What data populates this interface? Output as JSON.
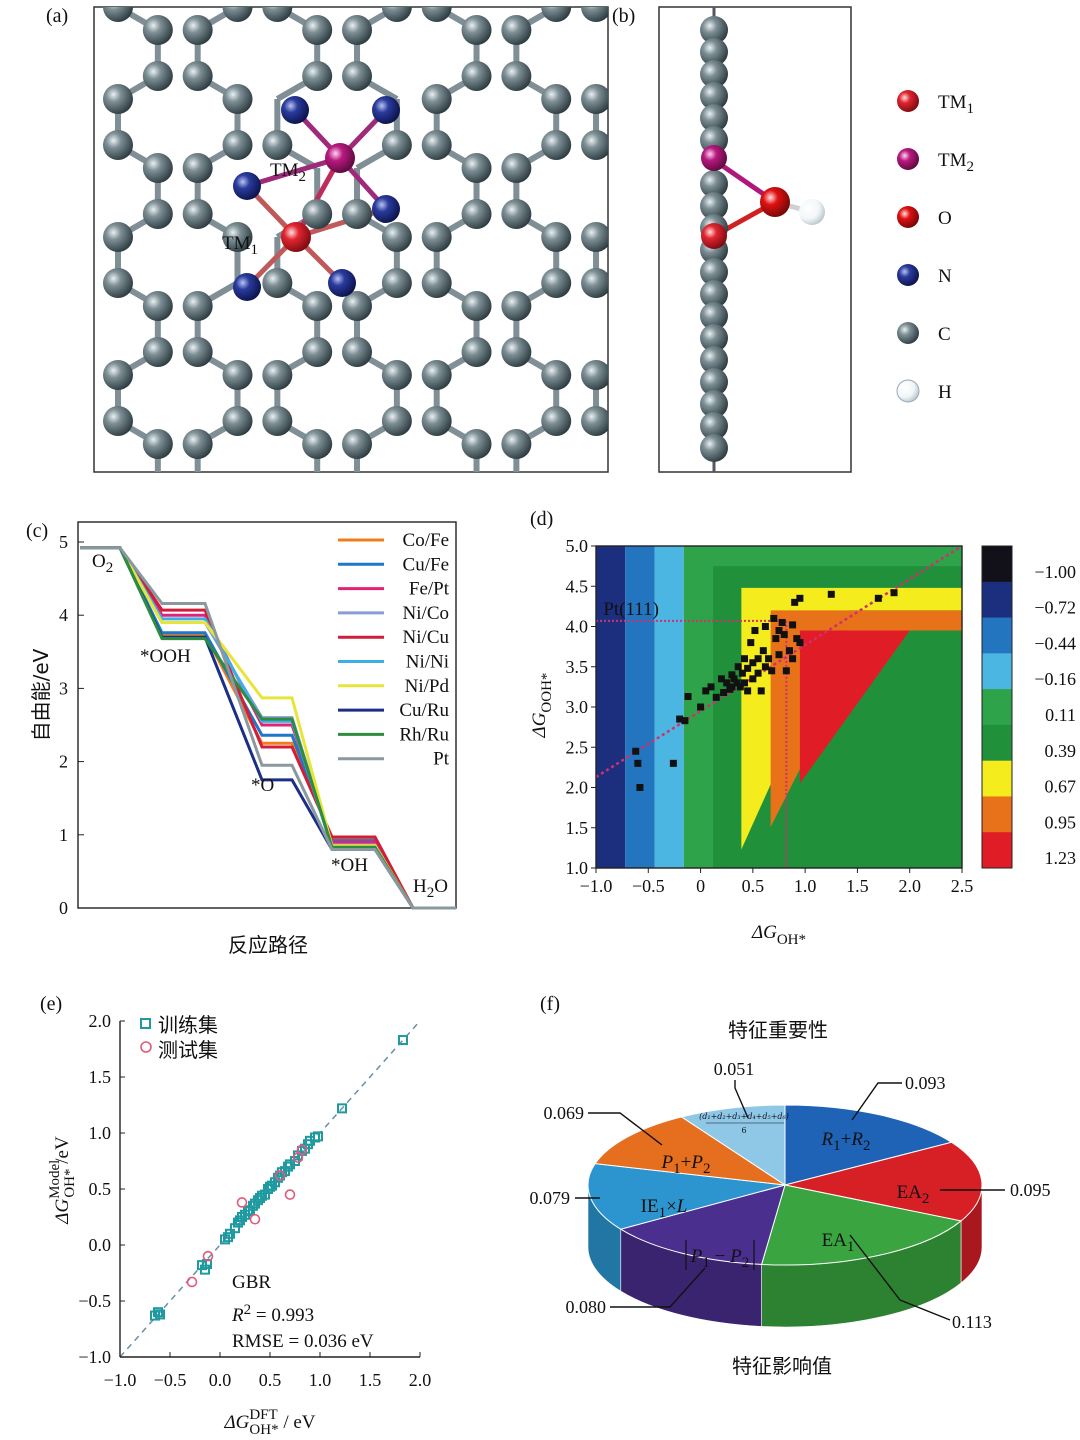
{
  "panels": {
    "a": "(a)",
    "b": "(b)",
    "c": "(c)",
    "d": "(d)",
    "e": "(e)",
    "f": "(f)"
  },
  "structure": {
    "labels": {
      "tm1": "TM",
      "tm1_sub": "1",
      "tm2": "TM",
      "tm2_sub": "2"
    },
    "legend": [
      {
        "name": "TM",
        "sub": "1",
        "color": "#d81e28"
      },
      {
        "name": "TM",
        "sub": "2",
        "color": "#b0177a"
      },
      {
        "name": "O",
        "sub": "",
        "color": "#e01010"
      },
      {
        "name": "N",
        "sub": "",
        "color": "#1a2a8a"
      },
      {
        "name": "C",
        "sub": "",
        "color": "#1f2e33"
      },
      {
        "name": "H",
        "sub": "",
        "color": "#f2f6f8"
      }
    ]
  },
  "chart_data": [
    {
      "id": "c",
      "type": "line",
      "title": "",
      "ylabel": "自由能/eV",
      "xlabel": "反应路径",
      "ylim": [
        0,
        5
      ],
      "yticks": [
        "0",
        "1",
        "2",
        "3",
        "4",
        "5"
      ],
      "steps": [
        "O2",
        "*OOH",
        "*O",
        "*OH",
        "H2O"
      ],
      "step_labels": {
        "o2": "O",
        "o2_sub": "2",
        "ooh": "*OOH",
        "o": "*O",
        "oh": "*OH",
        "h2o": "H",
        "h2o_sub": "2",
        "h2o_end": "O"
      },
      "series": [
        {
          "name": "Co/Fe",
          "color": "#f07d1a",
          "values": [
            4.92,
            3.74,
            2.25,
            0.95,
            0
          ]
        },
        {
          "name": "Cu/Fe",
          "color": "#1f77c9",
          "values": [
            4.92,
            3.76,
            2.36,
            0.92,
            0
          ]
        },
        {
          "name": "Fe/Pt",
          "color": "#e0237a",
          "values": [
            4.92,
            4.0,
            2.5,
            0.9,
            0
          ]
        },
        {
          "name": "Ni/Co",
          "color": "#8a9bd6",
          "values": [
            4.92,
            3.9,
            2.6,
            0.86,
            0
          ]
        },
        {
          "name": "Ni/Cu",
          "color": "#d21d3a",
          "values": [
            4.92,
            4.07,
            2.2,
            0.97,
            0
          ]
        },
        {
          "name": "Ni/Ni",
          "color": "#3cb0e6",
          "values": [
            4.92,
            3.95,
            2.55,
            0.82,
            0
          ]
        },
        {
          "name": "Ni/Pd",
          "color": "#e8e43a",
          "values": [
            4.92,
            3.9,
            2.87,
            0.85,
            0
          ]
        },
        {
          "name": "Cu/Ru",
          "color": "#1c2f86",
          "values": [
            4.92,
            3.7,
            1.75,
            0.8,
            0
          ]
        },
        {
          "name": "Rh/Ru",
          "color": "#2d8c3e",
          "values": [
            4.92,
            3.68,
            2.58,
            0.83,
            0
          ]
        },
        {
          "name": "Pt",
          "color": "#8a98a0",
          "values": [
            4.92,
            4.16,
            1.95,
            0.8,
            0
          ]
        }
      ]
    },
    {
      "id": "d",
      "type": "heatmap",
      "xlabel": "ΔG",
      "xlabel_sub": "OH*",
      "ylabel": "ΔG",
      "ylabel_sub": "OOH*",
      "xlim": [
        -1.0,
        2.5
      ],
      "ylim": [
        1.0,
        5.0
      ],
      "xticks": [
        "-1.0",
        "-0.5",
        "0",
        "0.5",
        "1.0",
        "1.5",
        "2.0",
        "2.5"
      ],
      "yticks": [
        "1.0",
        "1.5",
        "2.0",
        "2.5",
        "3.0",
        "3.5",
        "4.0",
        "4.5",
        "5.0"
      ],
      "colorbar": [
        {
          "label": "-1.00",
          "color": "#121018"
        },
        {
          "label": "-0.72",
          "color": "#1c2f7e"
        },
        {
          "label": "-0.44",
          "color": "#2375c0"
        },
        {
          "label": "-0.16",
          "color": "#4cb6e2"
        },
        {
          "label": "0.11",
          "color": "#2fa34a"
        },
        {
          "label": "0.39",
          "color": "#21903a"
        },
        {
          "label": "0.67",
          "color": "#f4ec1c"
        },
        {
          "label": "0.95",
          "color": "#e8721a"
        },
        {
          "label": "1.23",
          "color": "#e01c26"
        }
      ],
      "annotation": "Pt(111)",
      "pt_point": [
        0.82,
        4.07
      ],
      "scaling_line": {
        "slope": 0.82,
        "intercept": 2.95
      },
      "points": [
        [
          -0.62,
          2.45
        ],
        [
          -0.6,
          2.3
        ],
        [
          -0.58,
          2.0
        ],
        [
          -0.26,
          2.3
        ],
        [
          -0.2,
          2.85
        ],
        [
          -0.15,
          2.83
        ],
        [
          -0.12,
          3.13
        ],
        [
          0.0,
          3.0
        ],
        [
          0.05,
          3.2
        ],
        [
          0.1,
          3.25
        ],
        [
          0.15,
          3.12
        ],
        [
          0.2,
          3.35
        ],
        [
          0.22,
          3.18
        ],
        [
          0.25,
          3.3
        ],
        [
          0.28,
          3.22
        ],
        [
          0.3,
          3.4
        ],
        [
          0.3,
          3.25
        ],
        [
          0.32,
          3.35
        ],
        [
          0.35,
          3.3
        ],
        [
          0.36,
          3.5
        ],
        [
          0.38,
          3.25
        ],
        [
          0.4,
          3.42
        ],
        [
          0.42,
          3.6
        ],
        [
          0.42,
          3.3
        ],
        [
          0.45,
          3.48
        ],
        [
          0.45,
          3.2
        ],
        [
          0.48,
          3.8
        ],
        [
          0.5,
          3.55
        ],
        [
          0.5,
          3.35
        ],
        [
          0.52,
          3.95
        ],
        [
          0.55,
          3.42
        ],
        [
          0.55,
          3.6
        ],
        [
          0.58,
          3.2
        ],
        [
          0.6,
          3.7
        ],
        [
          0.62,
          3.5
        ],
        [
          0.62,
          4.0
        ],
        [
          0.65,
          3.6
        ],
        [
          0.68,
          3.45
        ],
        [
          0.7,
          4.1
        ],
        [
          0.72,
          3.85
        ],
        [
          0.75,
          3.95
        ],
        [
          0.75,
          3.65
        ],
        [
          0.78,
          4.05
        ],
        [
          0.8,
          3.9
        ],
        [
          0.82,
          3.45
        ],
        [
          0.85,
          3.7
        ],
        [
          0.88,
          4.02
        ],
        [
          0.88,
          3.6
        ],
        [
          0.9,
          4.3
        ],
        [
          0.92,
          3.85
        ],
        [
          0.95,
          4.35
        ],
        [
          0.95,
          3.8
        ],
        [
          1.25,
          4.4
        ],
        [
          1.7,
          4.35
        ],
        [
          1.85,
          4.42
        ]
      ]
    },
    {
      "id": "e",
      "type": "scatter",
      "xlabel": "ΔG",
      "xlabel_sup": "DFT",
      "xlabel_sub": "OH*",
      "xlabel_unit": " / eV",
      "ylabel": "ΔG",
      "ylabel_sup": "Model",
      "ylabel_sub": "OH*",
      "ylabel_unit": " /eV",
      "xlim": [
        -1.0,
        2.0
      ],
      "ylim": [
        -1.0,
        2.0
      ],
      "xticks": [
        "-1.0",
        "-0.5",
        "0.0",
        "0.5",
        "1.0",
        "1.5",
        "2.0"
      ],
      "yticks": [
        "-1.0",
        "-0.5",
        "0.0",
        "0.5",
        "1.0",
        "1.5",
        "2.0"
      ],
      "legend": [
        "训练集",
        "测试集"
      ],
      "model": "GBR",
      "r2_label": "R",
      "r2_sup": "2",
      "r2_value": " = 0.993",
      "rmse": "RMSE = 0.036 eV",
      "series": [
        {
          "name": "训练集",
          "color": "#1f9aa0",
          "points": [
            [
              -0.65,
              -0.63
            ],
            [
              -0.62,
              -0.6
            ],
            [
              -0.6,
              -0.62
            ],
            [
              -0.18,
              -0.18
            ],
            [
              -0.15,
              -0.22
            ],
            [
              -0.13,
              -0.17
            ],
            [
              0.05,
              0.05
            ],
            [
              0.08,
              0.07
            ],
            [
              0.1,
              0.1
            ],
            [
              0.15,
              0.15
            ],
            [
              0.18,
              0.2
            ],
            [
              0.2,
              0.22
            ],
            [
              0.22,
              0.25
            ],
            [
              0.25,
              0.27
            ],
            [
              0.28,
              0.3
            ],
            [
              0.3,
              0.31
            ],
            [
              0.33,
              0.35
            ],
            [
              0.35,
              0.37
            ],
            [
              0.38,
              0.4
            ],
            [
              0.4,
              0.42
            ],
            [
              0.42,
              0.44
            ],
            [
              0.45,
              0.45
            ],
            [
              0.48,
              0.5
            ],
            [
              0.5,
              0.52
            ],
            [
              0.52,
              0.53
            ],
            [
              0.55,
              0.56
            ],
            [
              0.58,
              0.6
            ],
            [
              0.6,
              0.62
            ],
            [
              0.62,
              0.65
            ],
            [
              0.65,
              0.66
            ],
            [
              0.68,
              0.7
            ],
            [
              0.7,
              0.72
            ],
            [
              0.75,
              0.75
            ],
            [
              0.78,
              0.8
            ],
            [
              0.82,
              0.84
            ],
            [
              0.85,
              0.86
            ],
            [
              0.88,
              0.9
            ],
            [
              0.9,
              0.93
            ],
            [
              0.95,
              0.96
            ],
            [
              0.98,
              0.97
            ],
            [
              1.22,
              1.22
            ],
            [
              1.83,
              1.83
            ]
          ]
        },
        {
          "name": "测试集",
          "color": "#e25b7c",
          "points": [
            [
              -0.28,
              -0.33
            ],
            [
              -0.12,
              -0.1
            ],
            [
              0.22,
              0.38
            ],
            [
              0.35,
              0.23
            ],
            [
              0.6,
              0.62
            ],
            [
              0.7,
              0.45
            ],
            [
              0.78,
              0.78
            ],
            [
              0.82,
              0.85
            ]
          ]
        }
      ]
    },
    {
      "id": "f",
      "type": "pie",
      "title": "特征重要性",
      "footer": "特征影响值",
      "slices": [
        {
          "name": "R1+R2",
          "value": 0.093,
          "label": "0.093",
          "color": "#1e63b5",
          "side": "#17518f"
        },
        {
          "name": "EA2",
          "value": 0.095,
          "label": "0.095",
          "color": "#d71f26",
          "side": "#a8181e"
        },
        {
          "name": "EA1",
          "value": 0.113,
          "label": "0.113",
          "color": "#3aa540",
          "side": "#2d8232"
        },
        {
          "name": "|P1-P2|",
          "value": 0.08,
          "label": "0.080",
          "color": "#4b2f8f",
          "side": "#3a236f"
        },
        {
          "name": "IE1×L",
          "value": 0.079,
          "label": "0.079",
          "color": "#2c95cf",
          "side": "#2276a4"
        },
        {
          "name": "P1+P2",
          "value": 0.069,
          "label": "0.069",
          "color": "#e56f1f",
          "side": "#b35617"
        },
        {
          "name": "(d1+d2+d3+d4+d5+d6)/6",
          "value": 0.051,
          "label": "0.051",
          "color": "#8fc7e6",
          "side": "#6fa3c0"
        }
      ],
      "slice_text": {
        "r": "R",
        "r_sub1": "1",
        "plus": "+",
        "r2": "R",
        "r_sub2": "2",
        "ea": "EA",
        "ea2_sub": "2",
        "ea1_sub": "1",
        "p": "P",
        "p_sub1": "1",
        "p_sub2": "2",
        "minus": " − ",
        "ie": "IE",
        "ie_sub": "1",
        "times": "×",
        "l": "L",
        "d_formula": "(d₁+d₂+d₃+d₄+d₅+d₆)",
        "d_den": "6"
      }
    }
  ]
}
